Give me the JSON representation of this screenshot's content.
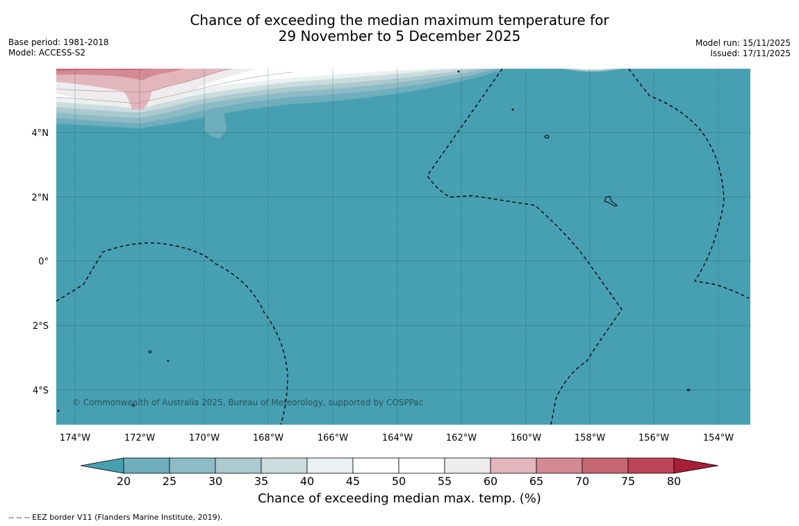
{
  "title": {
    "line1": "Chance of exceeding the median maximum temperature for",
    "line2": "29 November to 5 December 2025"
  },
  "meta": {
    "base_period": "Base period: 1981-2018",
    "model": "Model: ACCESS-S2",
    "model_run": "Model run: 15/11/2025",
    "issued": "Issued: 17/11/2025"
  },
  "map": {
    "lon_labels": [
      "174°W",
      "172°W",
      "170°W",
      "168°W",
      "166°W",
      "164°W",
      "162°W",
      "160°W",
      "158°W",
      "156°W",
      "154°W"
    ],
    "lat_labels": [
      "4°N",
      "2°N",
      "0°",
      "2°S",
      "4°S"
    ],
    "copyright": "© Commonwealth of Australia 2025, Bureau of Meteorology, supported by COSPPac",
    "base_color": "#47a0b1"
  },
  "colorbar": {
    "ticks": [
      "20",
      "25",
      "30",
      "35",
      "40",
      "45",
      "50",
      "55",
      "60",
      "65",
      "70",
      "75",
      "80"
    ],
    "colors": [
      "#47a0b1",
      "#6faebd",
      "#8dbbc5",
      "#abc9cf",
      "#ccdcde",
      "#e9f1f2",
      "#ffffff",
      "#ffffff",
      "#eeeced",
      "#e2b6bc",
      "#d48a94",
      "#c66771",
      "#bd4456",
      "#a81e38"
    ],
    "label": "Chance of exceeding median max. temp. (%)"
  },
  "footnote": "--  --  -- EEZ border V11 (Flanders Marine Institute, 2019)."
}
